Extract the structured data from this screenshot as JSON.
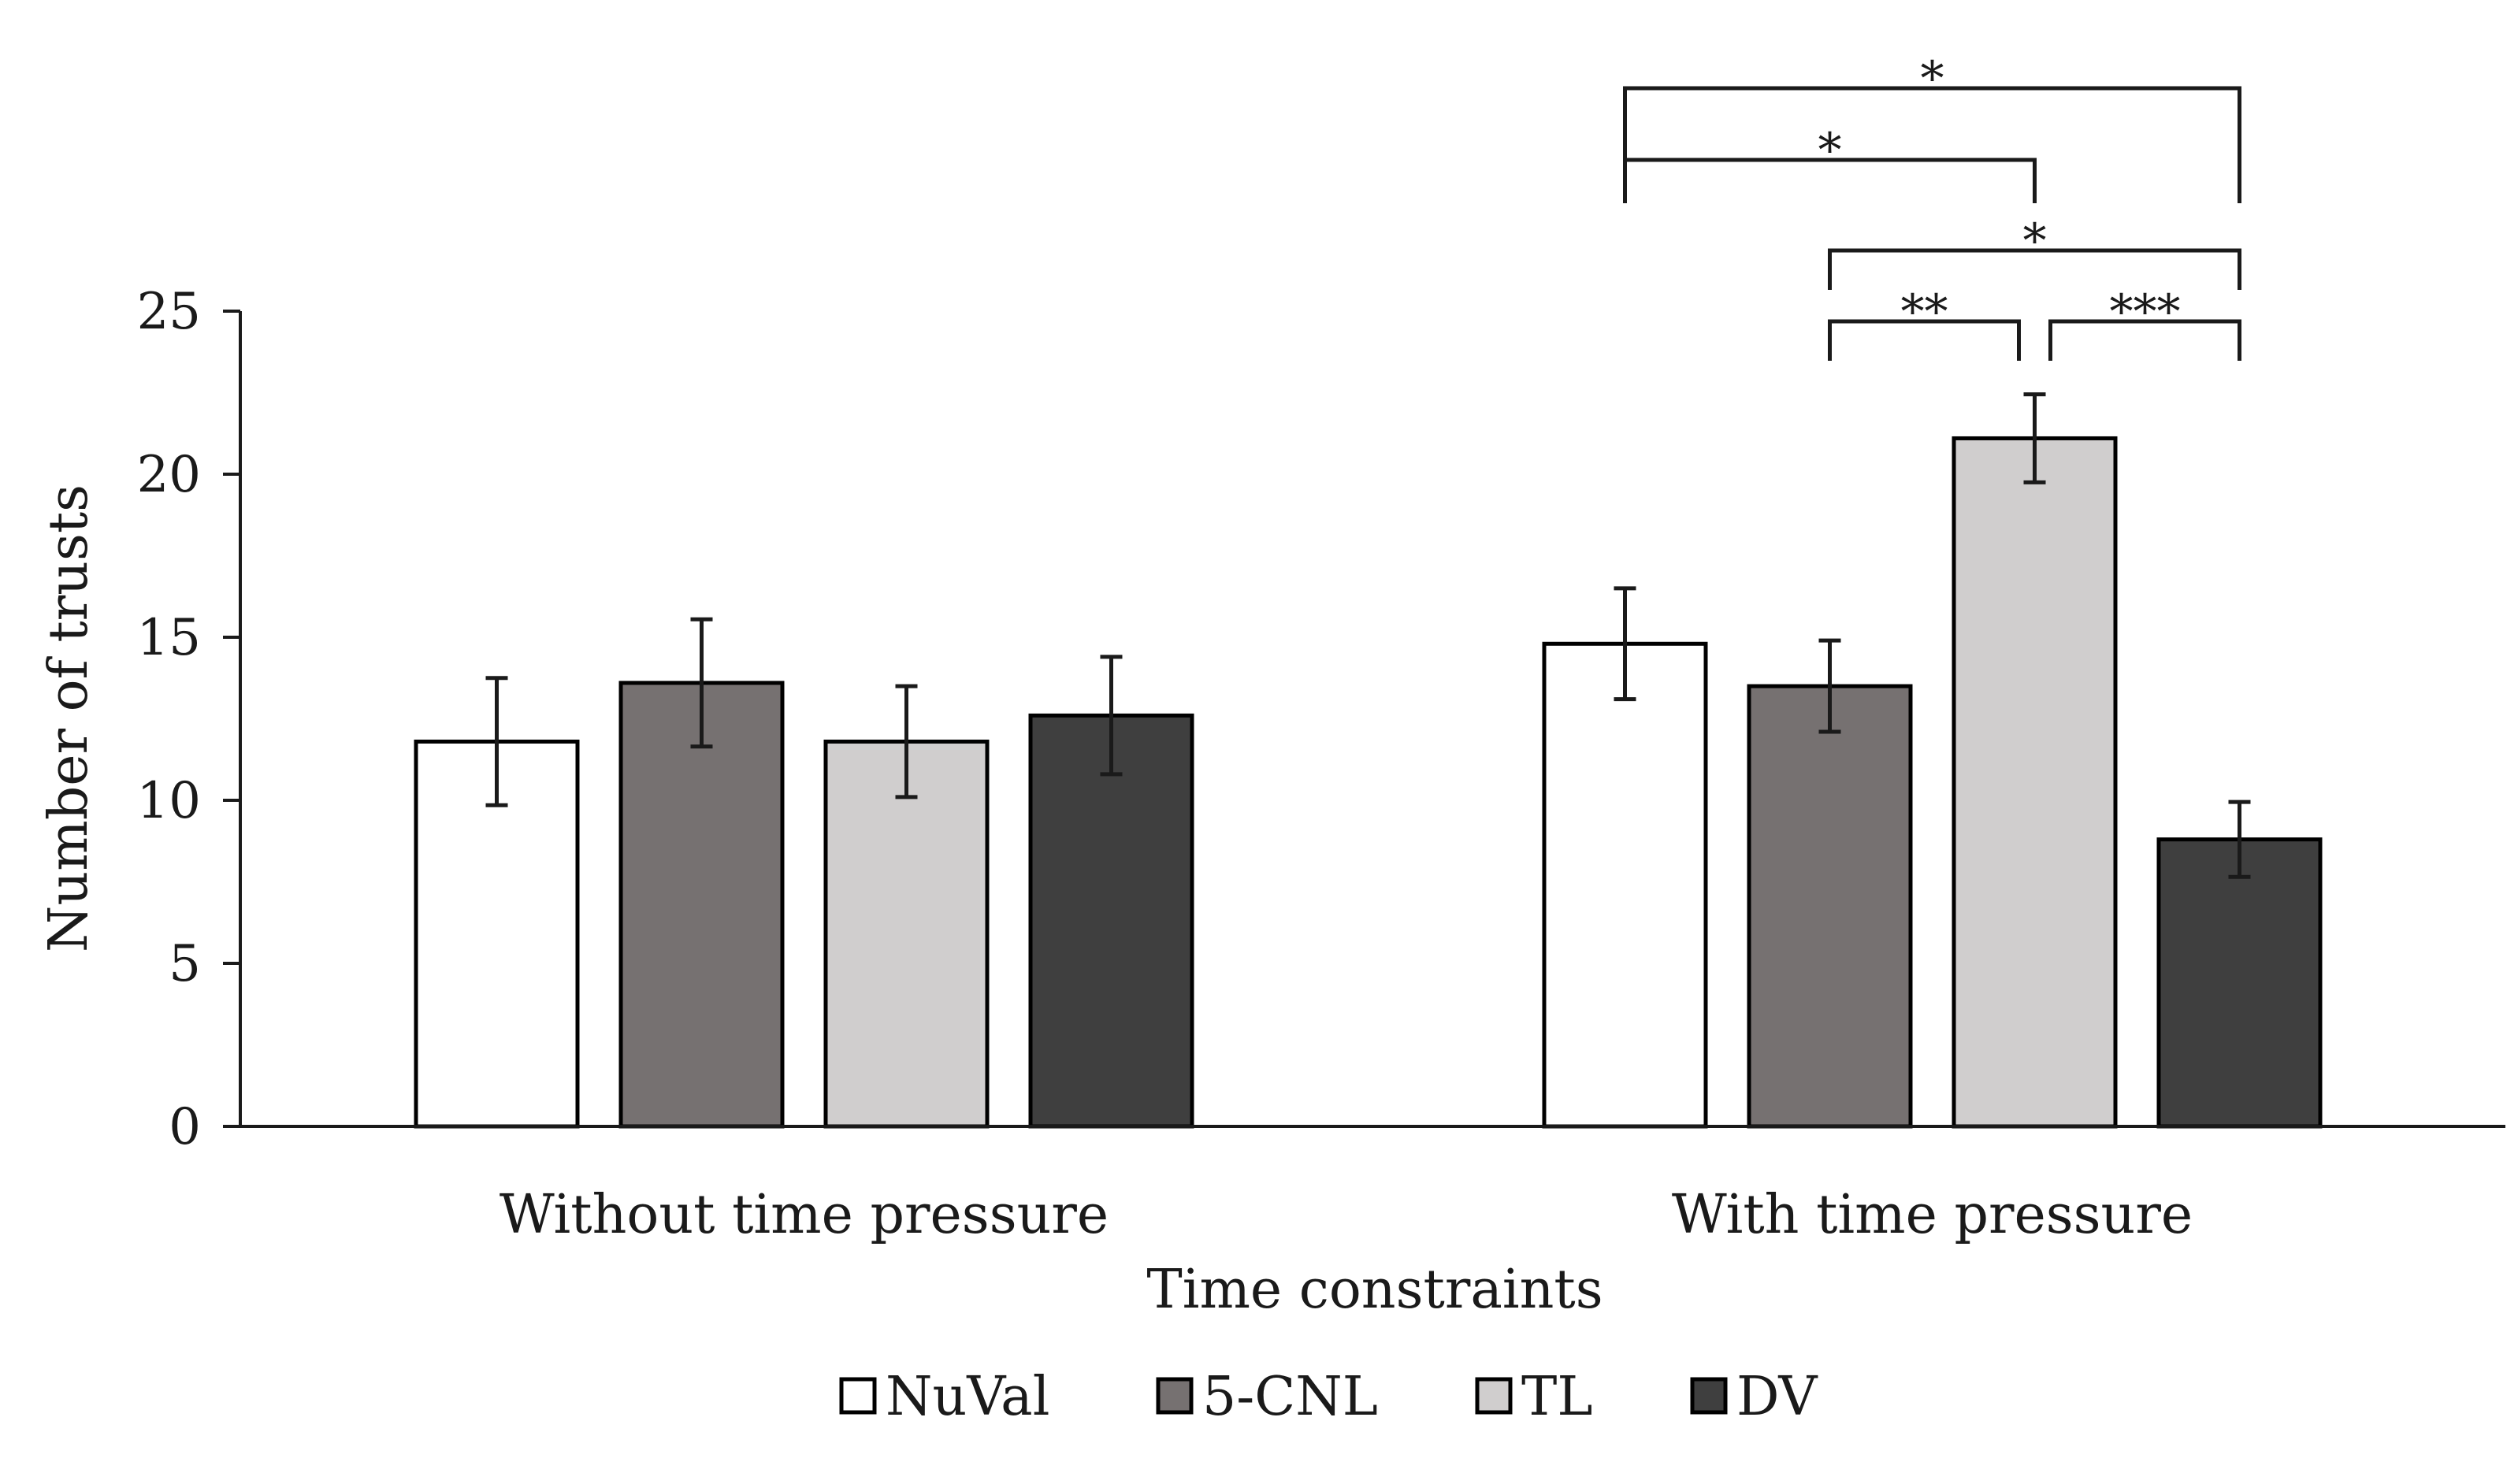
{
  "chart_data": {
    "type": "bar",
    "title": "",
    "xlabel": "Time constraints",
    "ylabel": "Number of trusts",
    "ylim": [
      0,
      25
    ],
    "yticks": [
      0,
      5,
      10,
      15,
      20,
      25
    ],
    "categories": [
      "Without time pressure",
      "With time pressure"
    ],
    "series": [
      {
        "name": "NuVal",
        "color": "#ffffff",
        "values": [
          11.8,
          14.8
        ],
        "errors": [
          1.95,
          1.7
        ]
      },
      {
        "name": "5-CNL",
        "color": "#767171",
        "values": [
          13.6,
          13.5
        ],
        "errors": [
          1.95,
          1.4
        ]
      },
      {
        "name": "TL",
        "color": "#d0cece",
        "values": [
          11.8,
          21.1
        ],
        "errors": [
          1.7,
          1.35
        ]
      },
      {
        "name": "DV",
        "color": "#3f3f3f",
        "values": [
          12.6,
          8.8
        ],
        "errors": [
          1.8,
          1.15
        ]
      }
    ],
    "significance": [
      {
        "category": 1,
        "from": "NuVal",
        "to": "DV",
        "label": "*"
      },
      {
        "category": 1,
        "from": "NuVal",
        "to": "TL",
        "label": "*"
      },
      {
        "category": 1,
        "from": "5-CNL",
        "to": "DV",
        "label": "*"
      },
      {
        "category": 1,
        "from": "5-CNL",
        "to": "TL",
        "label": "**"
      },
      {
        "category": 1,
        "from": "TL",
        "to": "DV",
        "label": "***"
      }
    ],
    "legend": {
      "position": "bottom",
      "entries": [
        "NuVal",
        "5-CNL",
        "TL",
        "DV"
      ]
    },
    "grid": false
  }
}
